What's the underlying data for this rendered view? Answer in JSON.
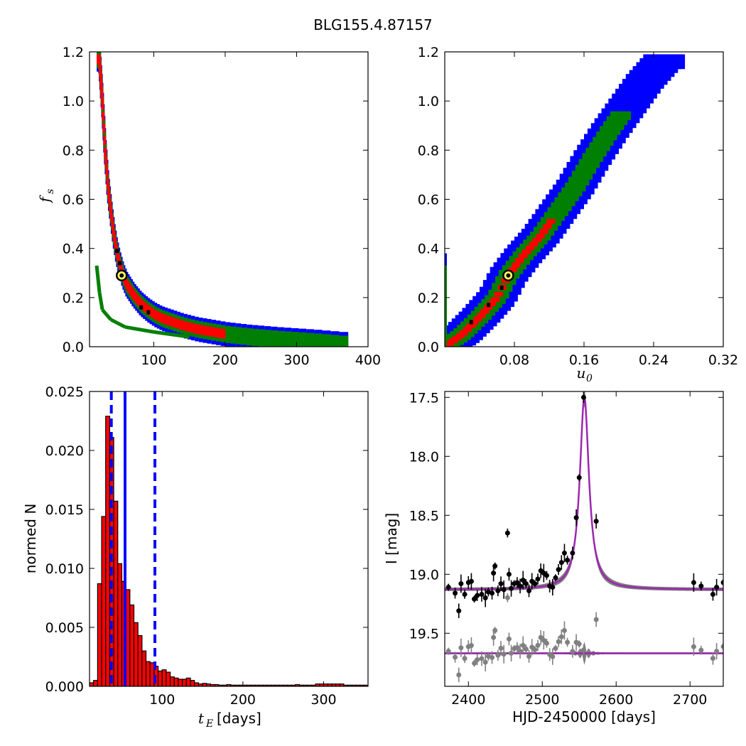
{
  "figure_title": "BLG155.4.87157",
  "colors": {
    "sigma3": "#0000ff",
    "sigma2": "#008000",
    "sigma1": "#ff0000",
    "best": "#000000",
    "hist_fill": "#ff0000",
    "median_line": "#0000ff",
    "model": "#9c27b0",
    "data": "#000000",
    "residual": "#808080",
    "best_marker": "#ffff66"
  },
  "chart_data": [
    {
      "type": "heatmap",
      "xlabel": "",
      "ylabel": "f_s",
      "xlim": [
        10,
        400
      ],
      "ylim": [
        0,
        1.2
      ],
      "xticks": [
        "100",
        "200",
        "300",
        "400"
      ],
      "yticks": [
        "0.0",
        "0.2",
        "0.4",
        "0.6",
        "0.8",
        "1.0",
        "1.2"
      ],
      "best_fit": [
        55,
        0.29
      ],
      "ridge": [
        [
          22,
          1.17
        ],
        [
          26,
          1.0
        ],
        [
          30,
          0.8
        ],
        [
          34,
          0.65
        ],
        [
          38,
          0.55
        ],
        [
          42,
          0.46
        ],
        [
          46,
          0.39
        ],
        [
          50,
          0.34
        ],
        [
          55,
          0.29
        ],
        [
          60,
          0.255
        ],
        [
          70,
          0.21
        ],
        [
          80,
          0.175
        ],
        [
          90,
          0.15
        ],
        [
          100,
          0.13
        ],
        [
          110,
          0.115
        ],
        [
          125,
          0.1
        ],
        [
          140,
          0.085
        ],
        [
          160,
          0.07
        ],
        [
          180,
          0.06
        ],
        [
          200,
          0.05
        ],
        [
          230,
          0.04
        ],
        [
          270,
          0.03
        ],
        [
          320,
          0.02
        ],
        [
          360,
          0.01
        ]
      ],
      "lower_branch": [
        [
          20,
          0.33
        ],
        [
          24,
          0.22
        ],
        [
          28,
          0.15
        ],
        [
          40,
          0.11
        ],
        [
          60,
          0.08
        ],
        [
          100,
          0.06
        ],
        [
          150,
          0.04
        ]
      ]
    },
    {
      "type": "heatmap",
      "xlabel": "u_0",
      "ylabel": "",
      "xlim": [
        0,
        0.32
      ],
      "ylim": [
        0,
        1.2
      ],
      "xticks": [
        "0.08",
        "0.16",
        "0.24",
        "0.32"
      ],
      "yticks": [
        "0.0",
        "0.2",
        "0.4",
        "0.6",
        "0.8",
        "1.0",
        "1.2"
      ],
      "best_fit": [
        0.073,
        0.29
      ],
      "ridge": [
        [
          0.004,
          0.01
        ],
        [
          0.02,
          0.05
        ],
        [
          0.04,
          0.12
        ],
        [
          0.06,
          0.2
        ],
        [
          0.073,
          0.29
        ],
        [
          0.09,
          0.37
        ],
        [
          0.11,
          0.45
        ],
        [
          0.13,
          0.55
        ],
        [
          0.15,
          0.65
        ],
        [
          0.17,
          0.77
        ],
        [
          0.19,
          0.88
        ],
        [
          0.21,
          0.98
        ],
        [
          0.23,
          1.08
        ],
        [
          0.25,
          1.16
        ]
      ]
    },
    {
      "type": "bar",
      "xlabel": "t_E  [days]",
      "ylabel": "normed N",
      "xlim": [
        10,
        355
      ],
      "ylim": [
        0,
        0.025
      ],
      "xticks": [
        "100",
        "200",
        "300"
      ],
      "yticks": [
        "0.000",
        "0.005",
        "0.010",
        "0.015",
        "0.020",
        "0.025"
      ],
      "bin_width": 5,
      "bin_start": 10,
      "values": [
        0.0003,
        0.0005,
        0.0087,
        0.0144,
        0.0229,
        0.0211,
        0.0157,
        0.0104,
        0.0089,
        0.0082,
        0.0069,
        0.0054,
        0.0043,
        0.003,
        0.0021,
        0.002,
        0.0017,
        0.0013,
        0.0014,
        0.0012,
        0.0008,
        0.0007,
        0.0006,
        0.0006,
        0.0007,
        0.0005,
        0.0003,
        0.0002,
        0.00025,
        0.0002,
        0.00015,
        0.00015,
        0.0001,
        0.0001,
        0.00015,
        0.0001,
        0.0001,
        0.0001,
        0.0001,
        0.0001,
        0.0001,
        0.0001,
        0.0001,
        0.0001,
        0.0001,
        0.0001,
        0.0001,
        0.0001,
        0.0001,
        0.0001,
        0.0001,
        0.00015,
        0.0001,
        0.0001,
        0.0001,
        0.0001,
        0.0002,
        0.0002,
        0.0002,
        0.0002,
        0.0002,
        0.0002,
        0.0002,
        0.0001,
        0.0001,
        0.0001,
        0.0001,
        0.0001,
        0.0001
      ],
      "median": 54,
      "lower": 37,
      "upper": 91
    },
    {
      "type": "line",
      "xlabel": "HJD-2450000 [days]",
      "ylabel": "I [mag]",
      "xlim": [
        2368,
        2745
      ],
      "ylim": [
        19.95,
        17.45
      ],
      "xticks": [
        "2400",
        "2500",
        "2600",
        "2700"
      ],
      "yticks": [
        "17.5",
        "18.0",
        "18.5",
        "19.0",
        "19.5"
      ],
      "model": {
        "baseline": 19.13,
        "t0": 2557,
        "peak": 17.5,
        "tau": 7.5,
        "residual_level": 19.67
      },
      "points": [
        [
          2373,
          19.11
        ],
        [
          2382,
          19.16
        ],
        [
          2387,
          19.31
        ],
        [
          2390,
          19.08
        ],
        [
          2395,
          19.17
        ],
        [
          2400,
          19.07
        ],
        [
          2404,
          19.06
        ],
        [
          2408,
          19.21
        ],
        [
          2412,
          19.18
        ],
        [
          2418,
          19.17
        ],
        [
          2423,
          19.2
        ],
        [
          2427,
          19.15
        ],
        [
          2432,
          19.16
        ],
        [
          2434,
          18.99
        ],
        [
          2436,
          18.93
        ],
        [
          2440,
          19.14
        ],
        [
          2444,
          19.08
        ],
        [
          2448,
          19.13
        ],
        [
          2453,
          18.65
        ],
        [
          2455,
          19.0
        ],
        [
          2458,
          19.12
        ],
        [
          2462,
          19.08
        ],
        [
          2466,
          19.07
        ],
        [
          2470,
          19.1
        ],
        [
          2474,
          19.05
        ],
        [
          2478,
          19.08
        ],
        [
          2482,
          19.14
        ],
        [
          2486,
          19.06
        ],
        [
          2490,
          19.08
        ],
        [
          2494,
          19.04
        ],
        [
          2498,
          18.97
        ],
        [
          2502,
          18.99
        ],
        [
          2506,
          19.01
        ],
        [
          2510,
          19.1
        ],
        [
          2514,
          19.11
        ],
        [
          2518,
          19.03
        ],
        [
          2522,
          18.96
        ],
        [
          2526,
          18.9
        ],
        [
          2530,
          18.82
        ],
        [
          2534,
          18.88
        ],
        [
          2541,
          18.82
        ],
        [
          2546,
          18.52
        ],
        [
          2550,
          18.18
        ],
        [
          2556,
          17.5
        ],
        [
          2573,
          18.55
        ],
        [
          2705,
          19.07
        ],
        [
          2715,
          19.1
        ],
        [
          2731,
          19.17
        ],
        [
          2736,
          19.11
        ],
        [
          2745,
          19.07
        ]
      ]
    }
  ]
}
